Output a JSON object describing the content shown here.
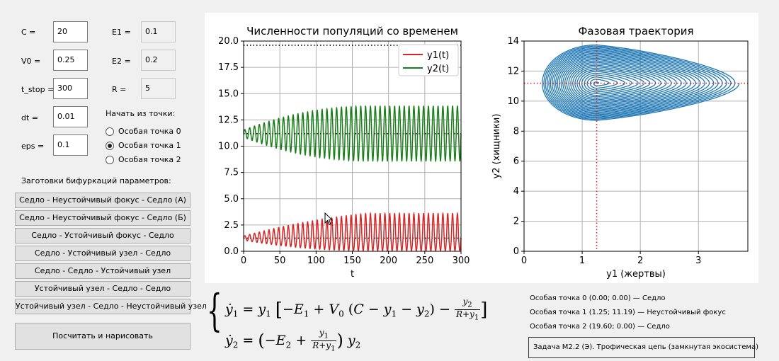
{
  "params": {
    "C": {
      "label": "C =",
      "value": "20"
    },
    "V0": {
      "label": "V0 =",
      "value": "0.25"
    },
    "t_stop": {
      "label": "t_stop =",
      "value": "300"
    },
    "dt": {
      "label": "dt =",
      "value": "0.01"
    },
    "eps": {
      "label": "eps =",
      "value": "0.1"
    },
    "E1": {
      "label": "E1 =",
      "value": "0.1"
    },
    "E2": {
      "label": "E2 =",
      "value": "0.2"
    },
    "R": {
      "label": "R =",
      "value": "5"
    }
  },
  "start_point": {
    "title": "Начать из точки:",
    "options": [
      "Особая точка 0",
      "Особая точка 1",
      "Особая точка 2"
    ],
    "selected_index": 1
  },
  "presets": {
    "title": "Заготовки бифуркаций параметров:",
    "buttons": [
      "Седло - Неустойчивый фокус - Седло (А)",
      "Седло - Неустойчивый фокус - Седло (Б)",
      "Седло - Устойчивый фокус - Седло",
      "Седло - Устойчивый узел - Седло",
      "Седло - Седло - Устойчивый узел",
      "Устойчивый узел - Седло - Седло",
      "Устойчивый узел - Седло - Неустойчивый узел"
    ]
  },
  "compute_button": "Посчитать и нарисовать",
  "equations": {
    "line1": [
      "ẏ",
      "1",
      " = y",
      "1",
      " [−E",
      "1",
      " + V",
      "0",
      " (C − y",
      "1",
      " − y",
      "2",
      ") − "
    ],
    "line2": [
      "ẏ",
      "2",
      " = (−E",
      "2",
      " + "
    ],
    "frac1_num": "y2",
    "frac1_den": "R+y1",
    "frac2_num": "y1",
    "frac2_den": "R+y1",
    "line2_tail": ") y2"
  },
  "singular_points": [
    "Особая точка 0 (0.00; 0.00) — Седло",
    "Особая точка 1 (1.25; 11.19) — Неустойчивый фокус",
    "Особая точка 2 (19.60; 0.00) — Седло"
  ],
  "task_label": "Задача М2.2 (Э). Трофическая цепь (замкнутая экосистема)",
  "colors": {
    "y1": "#d62728",
    "y2": "#1a7f1a",
    "phase": "#1f77b4",
    "ref_dotted": "#000000",
    "ref_red": "#d62728"
  },
  "chart_data": [
    {
      "type": "line",
      "title": "Численности популяций со временем",
      "xlabel": "t",
      "ylabel": "",
      "xlim": [
        0,
        300
      ],
      "ylim": [
        0,
        20
      ],
      "xticks": [
        "0",
        "50",
        "100",
        "150",
        "200",
        "250",
        "300"
      ],
      "yticks": [
        "0.0",
        "2.5",
        "5.0",
        "7.5",
        "10.0",
        "12.5",
        "15.0",
        "17.5",
        "20.0"
      ],
      "legend": "top-right",
      "grid": true,
      "series": [
        {
          "name": "y1(t)",
          "center": 1.25,
          "amplitude_start": 0.2,
          "amplitude_end": 1.2,
          "min_end": 0.05,
          "max_end": 3.6,
          "growth_end_t": 170,
          "cycles": 45
        },
        {
          "name": "y2(t)",
          "center": 11.19,
          "amplitude_start": 0.35,
          "amplitude_end": 2.6,
          "min_end": 8.6,
          "max_end": 13.8,
          "growth_end_t": 170,
          "cycles": 45
        }
      ],
      "reference_lines": [
        19.6,
        11.19,
        1.25
      ]
    },
    {
      "type": "line",
      "title": "Фазовая траектория",
      "xlabel": "y1 (жертвы)",
      "ylabel": "y2 (хищники)",
      "xlim": [
        0,
        3.85
      ],
      "ylim": [
        0,
        14
      ],
      "xticks": [
        "0",
        "1",
        "2",
        "3"
      ],
      "yticks": [
        "0",
        "2",
        "4",
        "6",
        "8",
        "10",
        "12",
        "14"
      ],
      "grid": true,
      "center": [
        1.25,
        11.19
      ],
      "outer_cycle": {
        "y1_min": 0.3,
        "y1_max": 3.7,
        "y2_min": 8.7,
        "y2_max": 13.8
      }
    }
  ]
}
